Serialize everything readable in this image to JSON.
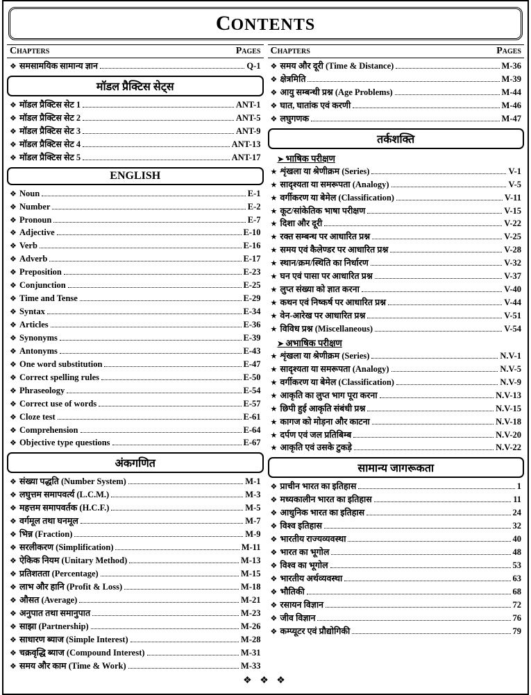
{
  "title_big": "C",
  "title_rest": "ONTENTS",
  "header_left": "Chapters",
  "header_right": "Pages",
  "footer": "❖ ❖ ❖",
  "left": [
    {
      "type": "entry",
      "bullet": "❖",
      "label": "समसामयिक सामान्य ज्ञान",
      "page": "Q-1"
    },
    {
      "type": "section",
      "label": "मॉडल प्रैक्टिस सेट्स"
    },
    {
      "type": "entry",
      "bullet": "❖",
      "label": "मॉडल प्रैक्टिस सेट 1",
      "page": "ANT-1"
    },
    {
      "type": "entry",
      "bullet": "❖",
      "label": "मॉडल प्रैक्टिस सेट 2",
      "page": "ANT-5"
    },
    {
      "type": "entry",
      "bullet": "❖",
      "label": "मॉडल प्रैक्टिस सेट 3",
      "page": "ANT-9"
    },
    {
      "type": "entry",
      "bullet": "❖",
      "label": "मॉडल प्रैक्टिस सेट 4",
      "page": "ANT-13"
    },
    {
      "type": "entry",
      "bullet": "❖",
      "label": "मॉडल प्रैक्टिस सेट 5",
      "page": "ANT-17"
    },
    {
      "type": "section",
      "label": "ENGLISH"
    },
    {
      "type": "entry",
      "bullet": "❖",
      "label": "Noun",
      "page": "E-1"
    },
    {
      "type": "entry",
      "bullet": "❖",
      "label": "Number",
      "page": "E-2"
    },
    {
      "type": "entry",
      "bullet": "❖",
      "label": "Pronoun",
      "page": "E-7"
    },
    {
      "type": "entry",
      "bullet": "❖",
      "label": "Adjective",
      "page": "E-10"
    },
    {
      "type": "entry",
      "bullet": "❖",
      "label": "Verb",
      "page": "E-16"
    },
    {
      "type": "entry",
      "bullet": "❖",
      "label": "Adverb",
      "page": "E-17"
    },
    {
      "type": "entry",
      "bullet": "❖",
      "label": "Preposition",
      "page": "E-23"
    },
    {
      "type": "entry",
      "bullet": "❖",
      "label": "Conjunction",
      "page": "E-25"
    },
    {
      "type": "entry",
      "bullet": "❖",
      "label": "Time and Tense",
      "page": "E-29"
    },
    {
      "type": "entry",
      "bullet": "❖",
      "label": "Syntax",
      "page": "E-34"
    },
    {
      "type": "entry",
      "bullet": "❖",
      "label": "Articles",
      "page": "E-36"
    },
    {
      "type": "entry",
      "bullet": "❖",
      "label": "Synonyms",
      "page": "E-39"
    },
    {
      "type": "entry",
      "bullet": "❖",
      "label": "Antonyms",
      "page": "E-43"
    },
    {
      "type": "entry",
      "bullet": "❖",
      "label": "One word substitution",
      "page": "E-47"
    },
    {
      "type": "entry",
      "bullet": "❖",
      "label": "Correct spelling rules",
      "page": "E-50"
    },
    {
      "type": "entry",
      "bullet": "❖",
      "label": "Phraseology",
      "page": "E-54"
    },
    {
      "type": "entry",
      "bullet": "❖",
      "label": "Correct use of words",
      "page": "E-57"
    },
    {
      "type": "entry",
      "bullet": "❖",
      "label": "Cloze test",
      "page": "E-61"
    },
    {
      "type": "entry",
      "bullet": "❖",
      "label": "Comprehension",
      "page": "E-64"
    },
    {
      "type": "entry",
      "bullet": "❖",
      "label": "Objective type questions",
      "page": "E-67"
    },
    {
      "type": "section",
      "label": "अंकगणित"
    },
    {
      "type": "entry",
      "bullet": "❖",
      "label": "संख्या पद्धति (Number System)",
      "page": "M-1"
    },
    {
      "type": "entry",
      "bullet": "❖",
      "label": "लघुत्तम समापवर्त्य (L.C.M.)",
      "page": "M-3"
    },
    {
      "type": "entry",
      "bullet": "❖",
      "label": "महत्तम समापवर्तक (H.C.F.)",
      "page": "M-5"
    },
    {
      "type": "entry",
      "bullet": "❖",
      "label": "वर्गमूल तथा घनमूल",
      "page": "M-7"
    },
    {
      "type": "entry",
      "bullet": "❖",
      "label": "भिन्न (Fraction)",
      "page": "M-9"
    },
    {
      "type": "entry",
      "bullet": "❖",
      "label": "सरलीकरण (Simplification)",
      "page": "M-11"
    },
    {
      "type": "entry",
      "bullet": "❖",
      "label": "ऐकिक नियम (Unitary Method)",
      "page": "M-13"
    },
    {
      "type": "entry",
      "bullet": "❖",
      "label": "प्रतिशतता (Percentage)",
      "page": "M-15"
    },
    {
      "type": "entry",
      "bullet": "❖",
      "label": "लाभ और हानि (Profit & Loss)",
      "page": "M-18"
    },
    {
      "type": "entry",
      "bullet": "❖",
      "label": "औसत (Average)",
      "page": "M-21"
    },
    {
      "type": "entry",
      "bullet": "❖",
      "label": "अनुपात तथा समानुपात",
      "page": "M-23"
    },
    {
      "type": "entry",
      "bullet": "❖",
      "label": "साझा (Partnership)",
      "page": "M-26"
    },
    {
      "type": "entry",
      "bullet": "❖",
      "label": "साधारण ब्याज (Simple Interest)",
      "page": "M-28"
    },
    {
      "type": "entry",
      "bullet": "❖",
      "label": "चक्रवृद्धि ब्याज (Compound Interest)",
      "page": "M-31"
    },
    {
      "type": "entry",
      "bullet": "❖",
      "label": "समय और काम (Time & Work)",
      "page": "M-33"
    }
  ],
  "right": [
    {
      "type": "entry",
      "bullet": "❖",
      "label": "समय और दूरी (Time & Distance)",
      "page": "M-36"
    },
    {
      "type": "entry",
      "bullet": "❖",
      "label": "क्षेत्रमिति",
      "page": "M-39"
    },
    {
      "type": "entry",
      "bullet": "❖",
      "label": "आयु सम्बन्धी प्रश्न (Age Problems)",
      "page": "M-44"
    },
    {
      "type": "entry",
      "bullet": "❖",
      "label": "घात, घातांक एवं करणी",
      "page": "M-46"
    },
    {
      "type": "entry",
      "bullet": "❖",
      "label": "लघुगणक",
      "page": "M-47"
    },
    {
      "type": "section",
      "label": "तर्कशक्ति"
    },
    {
      "type": "subsection",
      "label": "भाषिक परीक्षण"
    },
    {
      "type": "entry",
      "bullet": "★",
      "label": "शृंखला या श्रेणीक्रम (Series)",
      "page": "V-1"
    },
    {
      "type": "entry",
      "bullet": "★",
      "label": "सादृश्यता या समरूपता (Analogy)",
      "page": "V-5"
    },
    {
      "type": "entry",
      "bullet": "★",
      "label": "वर्गीकरण या बेमेल (Classification)",
      "page": "V-11"
    },
    {
      "type": "entry",
      "bullet": "★",
      "label": "कूट/सांकेतिक भाषा परीक्षण",
      "page": "V-15"
    },
    {
      "type": "entry",
      "bullet": "★",
      "label": "दिशा और दूरी",
      "page": "V-22"
    },
    {
      "type": "entry",
      "bullet": "★",
      "label": "रक्त सम्बन्ध पर आधारित प्रश्न",
      "page": "V-25"
    },
    {
      "type": "entry",
      "bullet": "★",
      "label": "समय एवं कैलेण्डर पर आधारित प्रश्न",
      "page": "V-28"
    },
    {
      "type": "entry",
      "bullet": "★",
      "label": "स्थान/क्रम/स्थिति का निर्धारण",
      "page": "V-32"
    },
    {
      "type": "entry",
      "bullet": "★",
      "label": "घन एवं पासा पर आधारित प्रश्न",
      "page": "V-37"
    },
    {
      "type": "entry",
      "bullet": "★",
      "label": "लुप्त संख्या को ज्ञात करना",
      "page": "V-40"
    },
    {
      "type": "entry",
      "bullet": "★",
      "label": "कथन एवं निष्कर्ष पर आधारित प्रश्न",
      "page": "V-44"
    },
    {
      "type": "entry",
      "bullet": "★",
      "label": "वेन-आरेख पर आधारित प्रश्न",
      "page": "V-51"
    },
    {
      "type": "entry",
      "bullet": "★",
      "label": "विविध प्रश्न (Miscellaneous)",
      "page": "V-54"
    },
    {
      "type": "subsection",
      "label": "अभाषिक परीक्षण"
    },
    {
      "type": "entry",
      "bullet": "★",
      "label": "शृंखला या श्रेणीक्रम (Series)",
      "page": "N.V-1"
    },
    {
      "type": "entry",
      "bullet": "★",
      "label": "सादृश्यता या समरूपता (Analogy)",
      "page": "N.V-5"
    },
    {
      "type": "entry",
      "bullet": "★",
      "label": "वर्गीकरण या बेमेल (Classification)",
      "page": "N.V-9"
    },
    {
      "type": "entry",
      "bullet": "★",
      "label": "आकृति का लुप्त भाग पूरा करना",
      "page": "N.V-13"
    },
    {
      "type": "entry",
      "bullet": "★",
      "label": "छिपी हुई आकृति संबंधी प्रश्न",
      "page": "N.V-15"
    },
    {
      "type": "entry",
      "bullet": "★",
      "label": "कागज को मोड़ना और काटना",
      "page": "N.V-18"
    },
    {
      "type": "entry",
      "bullet": "★",
      "label": "दर्पण एवं जल प्रतिबिम्ब",
      "page": "N.V-20"
    },
    {
      "type": "entry",
      "bullet": "★",
      "label": "आकृति एवं उसके टुकड़े",
      "page": "N.V-22"
    },
    {
      "type": "section",
      "label": "सामान्य जागरूकता"
    },
    {
      "type": "entry",
      "bullet": "❖",
      "label": "प्राचीन भारत का इतिहास",
      "page": "1"
    },
    {
      "type": "entry",
      "bullet": "❖",
      "label": "मध्यकालीन भारत का इतिहास",
      "page": "11"
    },
    {
      "type": "entry",
      "bullet": "❖",
      "label": "आधुनिक भारत का इतिहास",
      "page": "24"
    },
    {
      "type": "entry",
      "bullet": "❖",
      "label": "विश्व इतिहास",
      "page": "32"
    },
    {
      "type": "entry",
      "bullet": "❖",
      "label": "भारतीय राज्यव्यवस्था",
      "page": "40"
    },
    {
      "type": "entry",
      "bullet": "❖",
      "label": "भारत का भूगोल",
      "page": "48"
    },
    {
      "type": "entry",
      "bullet": "❖",
      "label": "विश्व का भूगोल",
      "page": "53"
    },
    {
      "type": "entry",
      "bullet": "❖",
      "label": "भारतीय अर्थव्यवस्था",
      "page": "63"
    },
    {
      "type": "entry",
      "bullet": "❖",
      "label": "भौतिकी",
      "page": "68"
    },
    {
      "type": "entry",
      "bullet": "❖",
      "label": "रसायन विज्ञान",
      "page": "72"
    },
    {
      "type": "entry",
      "bullet": "❖",
      "label": "जीव विज्ञान",
      "page": "76"
    },
    {
      "type": "entry",
      "bullet": "❖",
      "label": "कम्प्यूटर एवं प्रौद्योगिकी",
      "page": "79"
    }
  ]
}
